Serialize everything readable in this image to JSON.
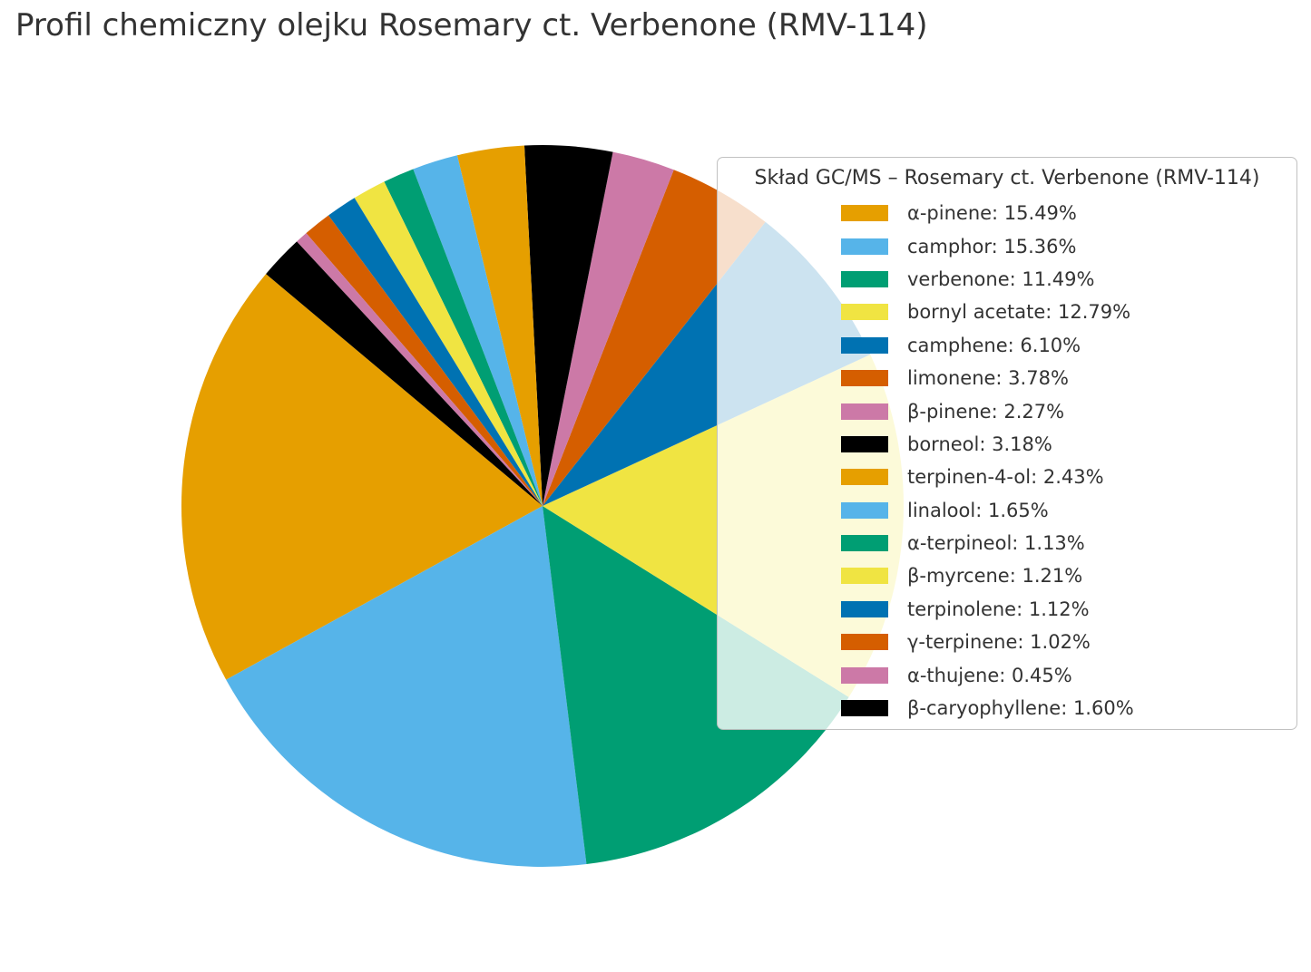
{
  "title": "Profil chemiczny olejku Rosemary ct. Verbenone (RMV-114)",
  "chart_data": {
    "type": "pie",
    "title": "Profil chemiczny olejku Rosemary ct. Verbenone (RMV-114)",
    "legend_title": "Skład GC/MS – Rosemary ct. Verbenone (RMV-114)",
    "legend_position": "upper right",
    "value_unit": "percent",
    "startangle": 140,
    "direction": "counterclockwise",
    "slices": [
      {
        "label": "α-pinene",
        "value": 15.49,
        "pct_label": "15.49%",
        "color": "#E69F00"
      },
      {
        "label": "camphor",
        "value": 15.36,
        "pct_label": "15.36%",
        "color": "#56B4E9"
      },
      {
        "label": "verbenone",
        "value": 11.49,
        "pct_label": "11.49%",
        "color": "#009E73"
      },
      {
        "label": "bornyl acetate",
        "value": 12.79,
        "pct_label": "12.79%",
        "color": "#F0E442"
      },
      {
        "label": "camphene",
        "value": 6.1,
        "pct_label": "6.10%",
        "color": "#0072B2"
      },
      {
        "label": "limonene",
        "value": 3.78,
        "pct_label": "3.78%",
        "color": "#D55E00"
      },
      {
        "label": "β-pinene",
        "value": 2.27,
        "pct_label": "2.27%",
        "color": "#CC79A7"
      },
      {
        "label": "borneol",
        "value": 3.18,
        "pct_label": "3.18%",
        "color": "#000000"
      },
      {
        "label": "terpinen-4-ol",
        "value": 2.43,
        "pct_label": "2.43%",
        "color": "#E69F00"
      },
      {
        "label": "linalool",
        "value": 1.65,
        "pct_label": "1.65%",
        "color": "#56B4E9"
      },
      {
        "label": "α-terpineol",
        "value": 1.13,
        "pct_label": "1.13%",
        "color": "#009E73"
      },
      {
        "label": "β-myrcene",
        "value": 1.21,
        "pct_label": "1.21%",
        "color": "#F0E442"
      },
      {
        "label": "terpinolene",
        "value": 1.12,
        "pct_label": "1.12%",
        "color": "#0072B2"
      },
      {
        "label": "γ-terpinene",
        "value": 1.02,
        "pct_label": "1.02%",
        "color": "#D55E00"
      },
      {
        "label": "α-thujene",
        "value": 0.45,
        "pct_label": "0.45%",
        "color": "#CC79A7"
      },
      {
        "label": "β-caryophyllene",
        "value": 1.6,
        "pct_label": "1.60%",
        "color": "#000000"
      }
    ]
  }
}
